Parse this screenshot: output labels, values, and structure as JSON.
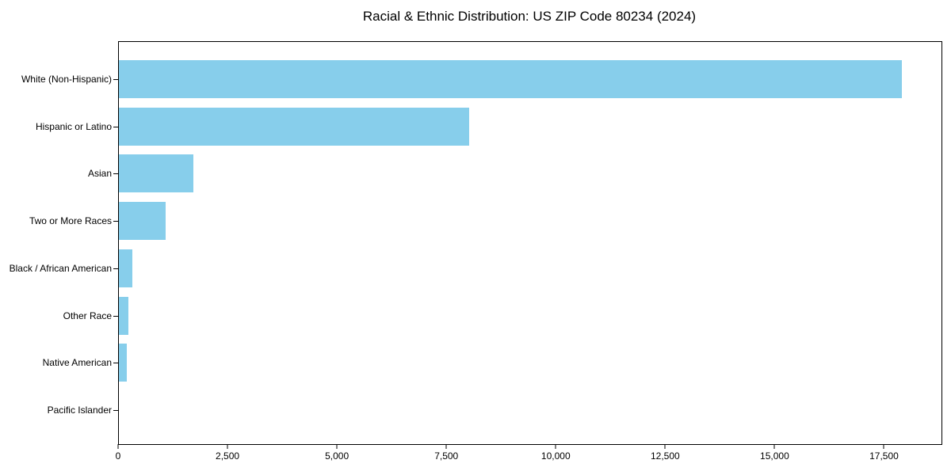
{
  "title": "Racial & Ethnic Distribution: US ZIP Code 80234 (2024)",
  "colors": {
    "bar": "#87CEEB",
    "axis": "#000000",
    "text": "#000000",
    "background": "#ffffff"
  },
  "chart_data": {
    "type": "bar",
    "orientation": "horizontal",
    "title": "Racial & Ethnic Distribution: US ZIP Code 80234 (2024)",
    "categories": [
      "White (Non-Hispanic)",
      "Hispanic or Latino",
      "Asian",
      "Two or More Races",
      "Black / African American",
      "Other Race",
      "Native American",
      "Pacific Islander"
    ],
    "values": [
      17890,
      8000,
      1700,
      1060,
      300,
      220,
      180,
      0
    ],
    "xlabel": "",
    "ylabel": "",
    "xlim": [
      0,
      18795
    ],
    "x_ticks": [
      0,
      2500,
      5000,
      7500,
      10000,
      12500,
      15000,
      17500
    ],
    "x_tick_labels": [
      "0",
      "2,500",
      "5,000",
      "7,500",
      "10,000",
      "12,500",
      "15,000",
      "17,500"
    ],
    "grid": false,
    "legend": false,
    "bar_color": "#87CEEB"
  }
}
